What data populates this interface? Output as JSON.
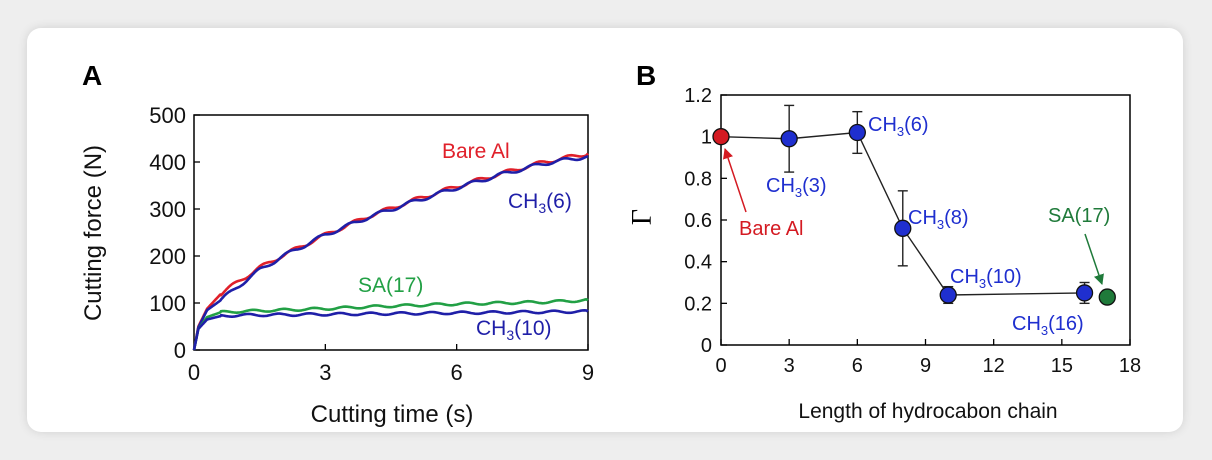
{
  "chart_data": [
    {
      "panel": "A",
      "type": "line",
      "xlabel": "Cutting time (s)",
      "ylabel": "Cutting force (N)",
      "xlim": [
        0,
        9
      ],
      "ylim": [
        0,
        500
      ],
      "xticks": [
        "0",
        "3",
        "6",
        "9"
      ],
      "yticks": [
        "0",
        "100",
        "200",
        "300",
        "400",
        "500"
      ],
      "series": [
        {
          "name": "Bare Al",
          "color": "#e0202a",
          "x": [
            0,
            0.1,
            0.3,
            0.6,
            1,
            1.5,
            2,
            3,
            4,
            5,
            6,
            7,
            8,
            9
          ],
          "y": [
            0,
            50,
            88,
            118,
            145,
            175,
            200,
            245,
            285,
            318,
            348,
            375,
            400,
            418
          ]
        },
        {
          "name": "CH3(6)",
          "color": "#1f1fa8",
          "x": [
            0,
            0.1,
            0.3,
            0.6,
            1,
            1.5,
            2,
            3,
            4,
            5,
            6,
            7,
            8,
            9
          ],
          "y": [
            0,
            48,
            85,
            105,
            135,
            170,
            198,
            245,
            283,
            315,
            345,
            373,
            397,
            412
          ]
        },
        {
          "name": "SA(17)",
          "color": "#22a045",
          "x": [
            0,
            0.1,
            0.3,
            0.6,
            1,
            2,
            3,
            4,
            5,
            6,
            7,
            8,
            9
          ],
          "y": [
            0,
            45,
            70,
            80,
            82,
            85,
            88,
            92,
            95,
            98,
            100,
            102,
            106
          ]
        },
        {
          "name": "CH3(10)",
          "color": "#1f1fa8",
          "x": [
            0,
            0.1,
            0.3,
            0.6,
            1,
            2,
            3,
            4,
            5,
            6,
            7,
            8,
            9
          ],
          "y": [
            0,
            45,
            65,
            72,
            74,
            75,
            76,
            77,
            78,
            79,
            80,
            81,
            82
          ]
        }
      ],
      "annotations": [
        "Bare Al",
        "CH3(6)",
        "SA(17)",
        "CH3(10)"
      ]
    },
    {
      "panel": "B",
      "type": "scatter",
      "xlabel": "Length of hydrocabon chain",
      "ylabel": "Γ",
      "xlim": [
        0,
        18
      ],
      "ylim": [
        0,
        1.2
      ],
      "xticks": [
        "0",
        "3",
        "6",
        "9",
        "12",
        "15",
        "18"
      ],
      "yticks": [
        "0",
        "0.2",
        "0.4",
        "0.6",
        "0.8",
        "1",
        "1.2"
      ],
      "points": [
        {
          "label": "Bare Al",
          "x": 0,
          "y": 1.0,
          "err": 0,
          "color": "#d41a22"
        },
        {
          "label": "CH3(3)",
          "x": 3,
          "y": 0.99,
          "err": 0.16,
          "color": "#1f2fcf"
        },
        {
          "label": "CH3(6)",
          "x": 6,
          "y": 1.02,
          "err": 0.1,
          "color": "#1f2fcf"
        },
        {
          "label": "CH3(8)",
          "x": 8,
          "y": 0.56,
          "err": 0.18,
          "color": "#1f2fcf"
        },
        {
          "label": "CH3(10)",
          "x": 10,
          "y": 0.24,
          "err": 0.04,
          "color": "#1f2fcf"
        },
        {
          "label": "CH3(16)",
          "x": 16,
          "y": 0.25,
          "err": 0.05,
          "color": "#1f2fcf"
        },
        {
          "label": "SA(17)",
          "x": 17,
          "y": 0.23,
          "err": 0,
          "color": "#1f7a3a"
        }
      ],
      "line_through": [
        "CH3(3)",
        "CH3(6)",
        "CH3(8)",
        "CH3(10)",
        "CH3(16)"
      ]
    }
  ],
  "labels": {
    "panel_a": "A",
    "panel_b": "B",
    "a_bare": "Bare Al",
    "a_ch6": "CH",
    "a_ch6_sub": "3",
    "a_ch6_rest": "(6)",
    "a_sa": "SA(17)",
    "a_ch10": "CH",
    "a_ch10_sub": "3",
    "a_ch10_rest": "(10)",
    "b_ch6": "(6)",
    "b_ch3": "(3)",
    "b_ch8": "(8)",
    "b_ch10": "(10)",
    "b_ch16": "(16)",
    "b_ch": "CH",
    "b_sub": "3",
    "b_bare": "Bare Al",
    "b_sa": "SA(17)"
  }
}
